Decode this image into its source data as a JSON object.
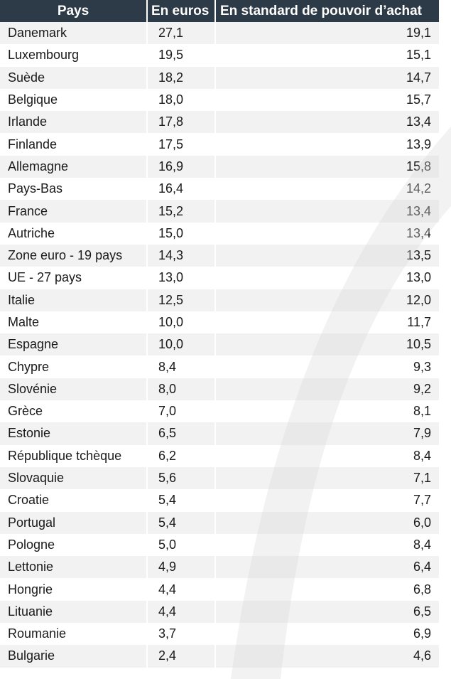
{
  "table": {
    "headers": {
      "country": "Pays",
      "euros": "En euros",
      "spa": "En standard de pouvoir d’achat"
    },
    "rows": [
      {
        "country": "Danemark",
        "euros": "27,1",
        "spa": "19,1"
      },
      {
        "country": "Luxembourg",
        "euros": "19,5",
        "spa": "15,1"
      },
      {
        "country": "Suède",
        "euros": "18,2",
        "spa": "14,7"
      },
      {
        "country": "Belgique",
        "euros": "18,0",
        "spa": "15,7"
      },
      {
        "country": "Irlande",
        "euros": "17,8",
        "spa": "13,4"
      },
      {
        "country": "Finlande",
        "euros": "17,5",
        "spa": "13,9"
      },
      {
        "country": "Allemagne",
        "euros": "16,9",
        "spa": "15,8"
      },
      {
        "country": "Pays-Bas",
        "euros": "16,4",
        "spa": "14,2"
      },
      {
        "country": "France",
        "euros": "15,2",
        "spa": "13,4"
      },
      {
        "country": "Autriche",
        "euros": "15,0",
        "spa": "13,4"
      },
      {
        "country": "Zone euro - 19 pays",
        "euros": "14,3",
        "spa": "13,5"
      },
      {
        "country": "UE - 27 pays",
        "euros": "13,0",
        "spa": "13,0"
      },
      {
        "country": "Italie",
        "euros": "12,5",
        "spa": "12,0"
      },
      {
        "country": "Malte",
        "euros": "10,0",
        "spa": "11,7"
      },
      {
        "country": "Espagne",
        "euros": "10,0",
        "spa": "10,5"
      },
      {
        "country": "Chypre",
        "euros": "8,4",
        "spa": "9,3"
      },
      {
        "country": "Slovénie",
        "euros": "8,0",
        "spa": "9,2"
      },
      {
        "country": "Grèce",
        "euros": "7,0",
        "spa": "8,1"
      },
      {
        "country": "Estonie",
        "euros": "6,5",
        "spa": "7,9"
      },
      {
        "country": "République tchèque",
        "euros": "6,2",
        "spa": "8,4"
      },
      {
        "country": "Slovaquie",
        "euros": "5,6",
        "spa": "7,1"
      },
      {
        "country": "Croatie",
        "euros": "5,4",
        "spa": "7,7"
      },
      {
        "country": "Portugal",
        "euros": "5,4",
        "spa": "6,0"
      },
      {
        "country": "Pologne",
        "euros": "5,0",
        "spa": "8,4"
      },
      {
        "country": "Lettonie",
        "euros": "4,9",
        "spa": "6,4"
      },
      {
        "country": "Hongrie",
        "euros": "4,4",
        "spa": "6,8"
      },
      {
        "country": "Lituanie",
        "euros": "4,4",
        "spa": "6,5"
      },
      {
        "country": "Roumanie",
        "euros": "3,7",
        "spa": "6,9"
      },
      {
        "country": "Bulgarie",
        "euros": "2,4",
        "spa": "4,6"
      }
    ]
  },
  "colors": {
    "header_bg": "#2d3a47",
    "header_text": "#ffffff",
    "row_stripe": "#f2f2f2",
    "watermark": "#d9d9d9"
  }
}
